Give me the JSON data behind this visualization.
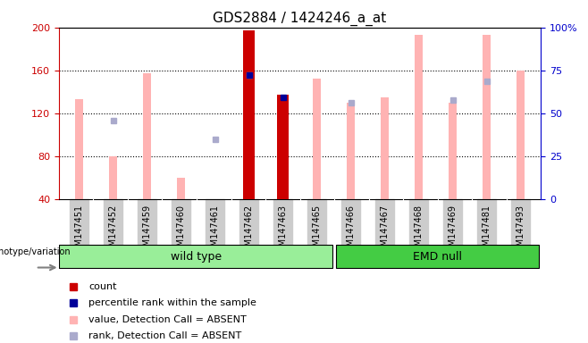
{
  "title": "GDS2884 / 1424246_a_at",
  "samples": [
    "GSM147451",
    "GSM147452",
    "GSM147459",
    "GSM147460",
    "GSM147461",
    "GSM147462",
    "GSM147463",
    "GSM147465",
    "GSM147466",
    "GSM147467",
    "GSM147468",
    "GSM147469",
    "GSM147481",
    "GSM147493"
  ],
  "ylim_left": [
    40,
    200
  ],
  "ylim_right": [
    0,
    100
  ],
  "grid_lines": [
    80,
    120,
    160
  ],
  "n_wild_type": 8,
  "n_emd_null": 6,
  "group_label_wt": "wild type",
  "group_label_emd": "EMD null",
  "legend_items": [
    "count",
    "percentile rank within the sample",
    "value, Detection Call = ABSENT",
    "rank, Detection Call = ABSENT"
  ],
  "colors": {
    "count": "#cc0000",
    "percentile": "#000099",
    "absent_value": "#ffb3b3",
    "absent_rank": "#aaaacc",
    "wt_bg": "#99ee99",
    "emd_bg": "#44cc44",
    "sample_bg": "#cccccc",
    "left_axis": "#cc0000",
    "right_axis": "#0000cc"
  },
  "absent_value_data": [
    133,
    80,
    157,
    60,
    null,
    null,
    null,
    152,
    130,
    135,
    193,
    130,
    193,
    160
  ],
  "absent_rank_data": [
    null,
    113,
    null,
    null,
    96,
    156,
    null,
    null,
    130,
    null,
    null,
    132,
    150,
    null
  ],
  "count_data": [
    null,
    null,
    null,
    null,
    null,
    197,
    137,
    null,
    null,
    null,
    null,
    null,
    null,
    null
  ],
  "percentile_data": [
    null,
    null,
    null,
    null,
    null,
    156,
    135,
    null,
    null,
    null,
    null,
    null,
    null,
    null
  ]
}
